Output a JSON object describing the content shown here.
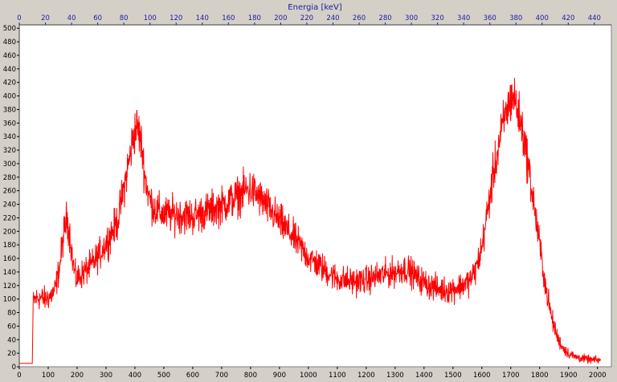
{
  "chart_data": {
    "type": "line",
    "title": "",
    "xlabel": "",
    "top_xlabel": "Energia [keV]",
    "ylabel": "",
    "xlim": [
      0,
      2048
    ],
    "ylim": [
      0,
      505
    ],
    "top_xlim": [
      0,
      453
    ],
    "x_ticks": [
      0,
      100,
      200,
      300,
      400,
      500,
      600,
      700,
      800,
      900,
      1000,
      1100,
      1200,
      1300,
      1400,
      1500,
      1600,
      1700,
      1800,
      1900,
      2000
    ],
    "y_ticks": [
      0,
      20,
      40,
      60,
      80,
      100,
      120,
      140,
      160,
      180,
      200,
      220,
      240,
      260,
      280,
      300,
      320,
      340,
      360,
      380,
      400,
      420,
      440,
      460,
      480,
      500
    ],
    "top_x_ticks": [
      0,
      20,
      40,
      60,
      80,
      100,
      120,
      140,
      160,
      180,
      200,
      220,
      240,
      260,
      280,
      300,
      320,
      340,
      360,
      380,
      400,
      420,
      440
    ],
    "grid": false,
    "series": [
      {
        "color": "#ff0000",
        "x": [
          0,
          45,
          48,
          55,
          70,
          90,
          110,
          125,
          140,
          155,
          165,
          175,
          185,
          195,
          205,
          220,
          250,
          280,
          310,
          340,
          360,
          380,
          395,
          405,
          415,
          425,
          435,
          450,
          470,
          500,
          550,
          600,
          650,
          700,
          750,
          780,
          800,
          820,
          850,
          900,
          950,
          1000,
          1050,
          1100,
          1150,
          1200,
          1250,
          1300,
          1330,
          1350,
          1380,
          1420,
          1450,
          1480,
          1500,
          1530,
          1560,
          1580,
          1600,
          1620,
          1640,
          1660,
          1680,
          1700,
          1710,
          1720,
          1740,
          1760,
          1780,
          1800,
          1820,
          1840,
          1860,
          1880,
          1900,
          1920,
          1950,
          1980,
          2000,
          2010
        ],
        "y": [
          5,
          5,
          95,
          100,
          102,
          100,
          105,
          115,
          150,
          200,
          220,
          195,
          155,
          130,
          132,
          138,
          150,
          168,
          190,
          215,
          260,
          305,
          340,
          355,
          345,
          320,
          280,
          248,
          232,
          225,
          225,
          222,
          230,
          238,
          250,
          260,
          262,
          255,
          240,
          215,
          190,
          162,
          145,
          130,
          126,
          128,
          135,
          140,
          145,
          142,
          130,
          120,
          115,
          113,
          115,
          120,
          128,
          145,
          175,
          230,
          285,
          330,
          370,
          395,
          400,
          385,
          350,
          300,
          240,
          180,
          120,
          75,
          45,
          28,
          20,
          15,
          12,
          10,
          10,
          10
        ]
      }
    ]
  }
}
